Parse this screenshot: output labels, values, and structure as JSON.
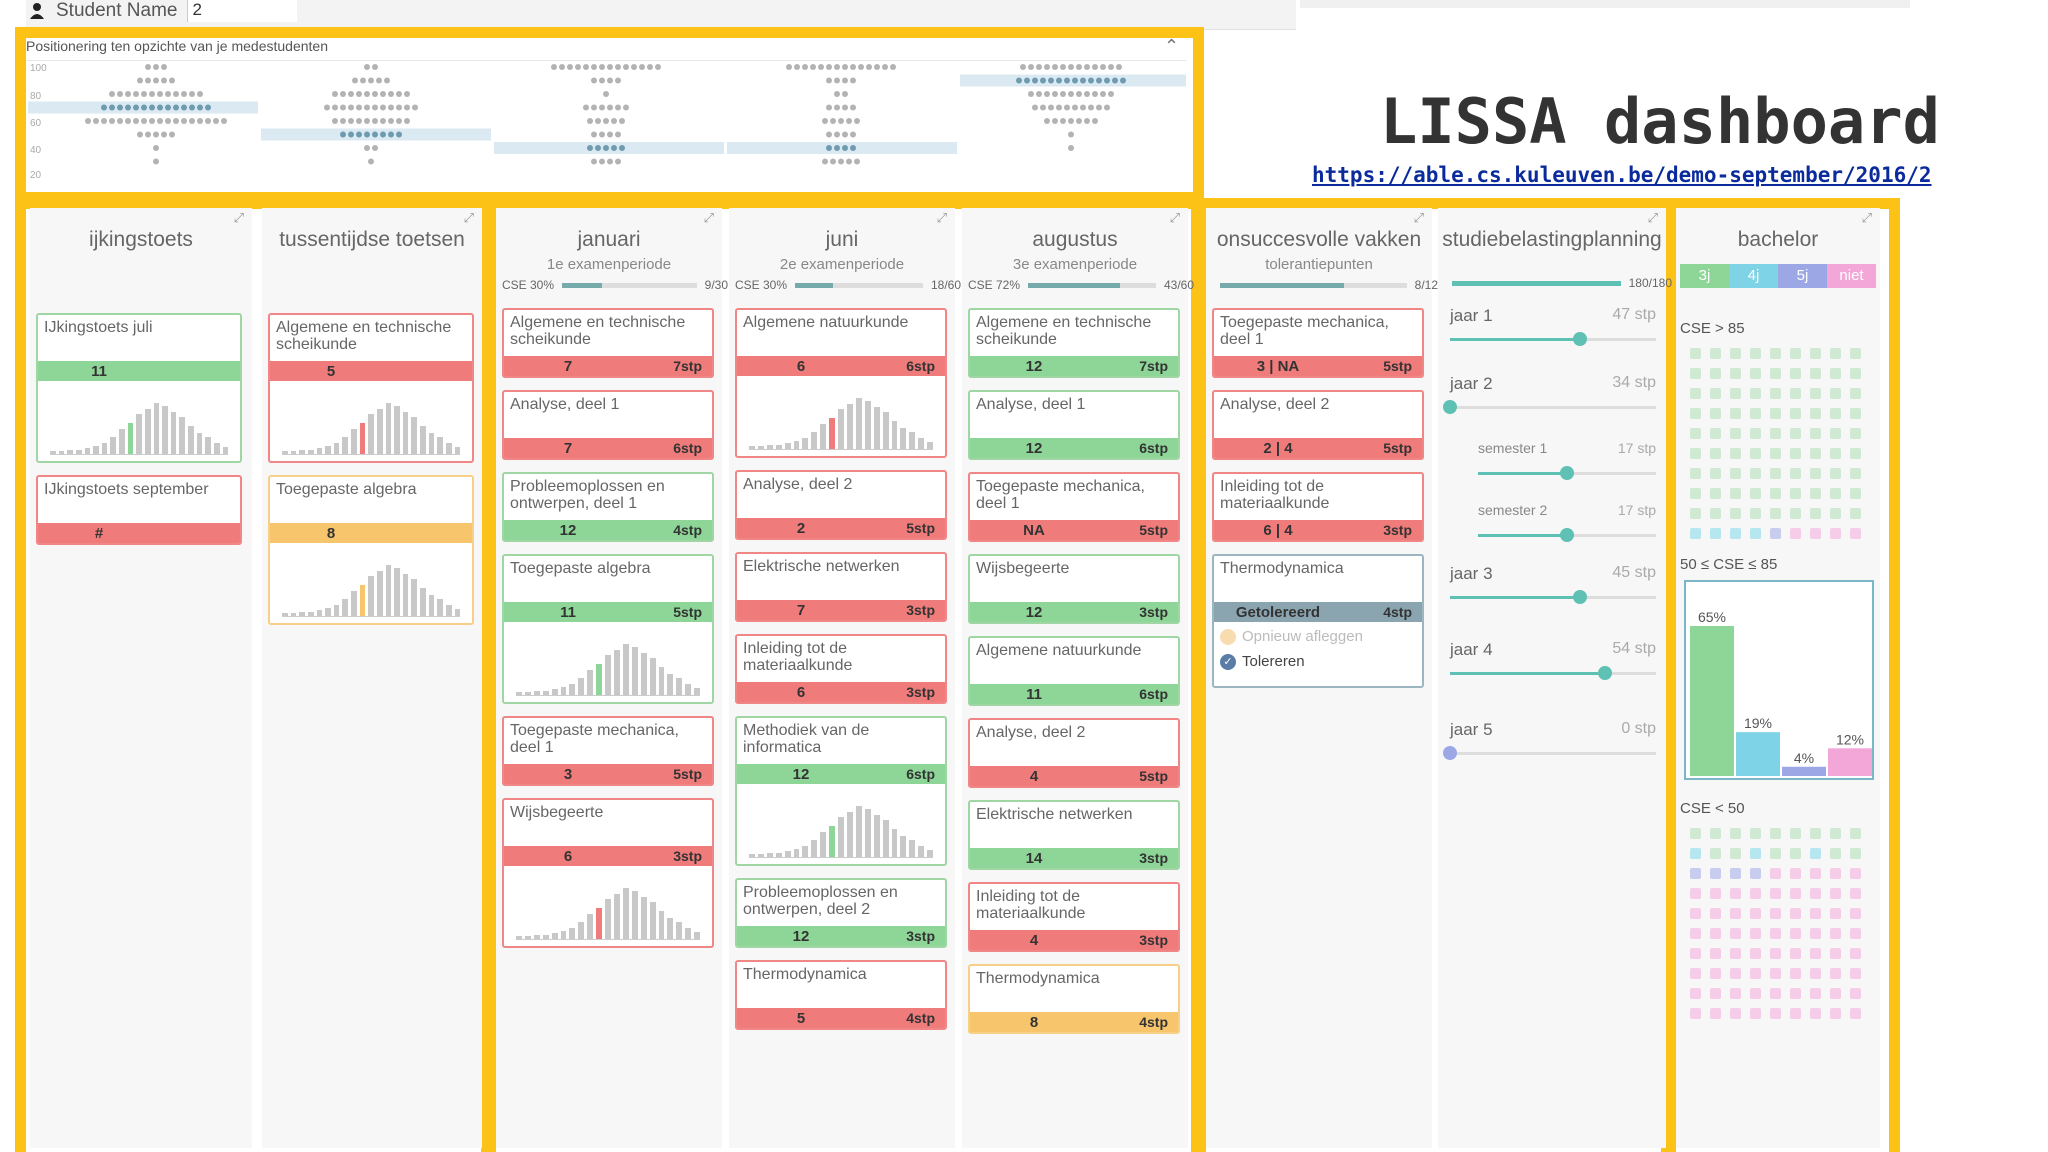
{
  "student": {
    "label": "Student Name",
    "value": "2"
  },
  "positioning": {
    "title": "Positionering ten opzichte van je medestudenten",
    "yticks": [
      "100",
      "80",
      "60",
      "40",
      "20"
    ]
  },
  "slide": {
    "title": "LISSA dashboard",
    "link": "https://able.cs.kuleuven.be/demo-september/2016/2"
  },
  "columns": {
    "ijkingstoets": {
      "title": "ijkingstoets",
      "cards": [
        {
          "name": "IJkingstoets juli",
          "grade": "11",
          "stp": "",
          "color": "green",
          "hist": true
        },
        {
          "name": "IJkingstoets september",
          "grade": "#",
          "stp": "",
          "color": "red",
          "hist": false
        }
      ]
    },
    "tussentijdse": {
      "title": "tussentijdse toetsen",
      "cards": [
        {
          "name": "Algemene en technische scheikunde",
          "grade": "5",
          "stp": "",
          "color": "red",
          "hist": true
        },
        {
          "name": "Toegepaste algebra",
          "grade": "8",
          "stp": "",
          "color": "orange",
          "hist": true
        }
      ]
    },
    "januari": {
      "title": "januari",
      "sub": "1e examenperiode",
      "cse": "CSE 30%",
      "ratio": "9/30",
      "fill": 0.3,
      "cards": [
        {
          "name": "Algemene en technische scheikunde",
          "grade": "7",
          "stp": "7stp",
          "color": "red"
        },
        {
          "name": "Analyse, deel 1",
          "grade": "7",
          "stp": "6stp",
          "color": "red"
        },
        {
          "name": "Probleemoplossen en ontwerpen, deel 1",
          "grade": "12",
          "stp": "4stp",
          "color": "green"
        },
        {
          "name": "Toegepaste algebra",
          "grade": "11",
          "stp": "5stp",
          "color": "green"
        },
        {
          "name": "Toegepaste mechanica, deel 1",
          "grade": "3",
          "stp": "5stp",
          "color": "red"
        },
        {
          "name": "Wijsbegeerte",
          "grade": "6",
          "stp": "3stp",
          "color": "red"
        }
      ]
    },
    "juni": {
      "title": "juni",
      "sub": "2e examenperiode",
      "cse": "CSE 30%",
      "ratio": "18/60",
      "fill": 0.3,
      "cards": [
        {
          "name": "Algemene natuurkunde",
          "grade": "6",
          "stp": "6stp",
          "color": "red"
        },
        {
          "name": "Analyse, deel 2",
          "grade": "2",
          "stp": "5stp",
          "color": "red"
        },
        {
          "name": "Elektrische netwerken",
          "grade": "7",
          "stp": "3stp",
          "color": "red"
        },
        {
          "name": "Inleiding tot de materiaalkunde",
          "grade": "6",
          "stp": "3stp",
          "color": "red"
        },
        {
          "name": "Methodiek van de informatica",
          "grade": "12",
          "stp": "6stp",
          "color": "green"
        },
        {
          "name": "Probleemoplossen en ontwerpen, deel 2",
          "grade": "12",
          "stp": "3stp",
          "color": "green"
        },
        {
          "name": "Thermodynamica",
          "grade": "5",
          "stp": "4stp",
          "color": "red"
        }
      ]
    },
    "augustus": {
      "title": "augustus",
      "sub": "3e examenperiode",
      "cse": "CSE 72%",
      "ratio": "43/60",
      "fill": 0.72,
      "cards": [
        {
          "name": "Algemene en technische scheikunde",
          "grade": "12",
          "stp": "7stp",
          "color": "green"
        },
        {
          "name": "Analyse, deel 1",
          "grade": "12",
          "stp": "6stp",
          "color": "green"
        },
        {
          "name": "Toegepaste mechanica, deel 1",
          "grade": "NA",
          "stp": "5stp",
          "color": "red"
        },
        {
          "name": "Wijsbegeerte",
          "grade": "12",
          "stp": "3stp",
          "color": "green"
        },
        {
          "name": "Algemene natuurkunde",
          "grade": "11",
          "stp": "6stp",
          "color": "green"
        },
        {
          "name": "Analyse, deel 2",
          "grade": "4",
          "stp": "5stp",
          "color": "red"
        },
        {
          "name": "Elektrische netwerken",
          "grade": "14",
          "stp": "3stp",
          "color": "green"
        },
        {
          "name": "Inleiding tot de materiaalkunde",
          "grade": "4",
          "stp": "3stp",
          "color": "red"
        },
        {
          "name": "Thermodynamica",
          "grade": "8",
          "stp": "4stp",
          "color": "orange"
        }
      ]
    },
    "onsuccesvolle": {
      "title": "onsuccesvolle vakken",
      "sub": "tolerantiepunten",
      "ratio": "8/12",
      "fill": 0.667,
      "cards": [
        {
          "name": "Toegepaste mechanica, deel 1",
          "grade": "3 | NA",
          "stp": "5stp",
          "color": "red"
        },
        {
          "name": "Analyse, deel 2",
          "grade": "2 | 4",
          "stp": "5stp",
          "color": "red"
        },
        {
          "name": "Inleiding tot de materiaalkunde",
          "grade": "6 | 4",
          "stp": "3stp",
          "color": "red"
        }
      ],
      "thermo": {
        "name": "Thermodynamica",
        "status": "Getolereerd",
        "stp": "4stp",
        "opt1": "Opnieuw afleggen",
        "opt2": "Tolereren"
      }
    },
    "studiebelasting": {
      "title": "studiebelastingplanning",
      "ratio": "180/180",
      "years": [
        {
          "label": "jaar 1",
          "value": "47 stp",
          "fill": 0.63
        },
        {
          "label": "jaar 2",
          "value": "34 stp",
          "fill": 0.0
        },
        {
          "label": "semester 1",
          "value": "17 stp",
          "fill": 0.5
        },
        {
          "label": "semester 2",
          "value": "17 stp",
          "fill": 0.5
        },
        {
          "label": "jaar 3",
          "value": "45 stp",
          "fill": 0.63
        },
        {
          "label": "jaar 4",
          "value": "54 stp",
          "fill": 0.75
        },
        {
          "label": "jaar 5",
          "value": "0 stp",
          "fill": 0.0
        }
      ]
    },
    "bachelor": {
      "title": "bachelor",
      "legend": [
        {
          "label": "3j",
          "color": "#8dd697"
        },
        {
          "label": "4j",
          "color": "#7fd3e6"
        },
        {
          "label": "5j",
          "color": "#9ca8e6"
        },
        {
          "label": "niet",
          "color": "#f3a6d8"
        }
      ],
      "cse_high": "CSE > 85",
      "cse_mid": "50 ≤ CSE ≤ 85",
      "cse_low": "CSE < 50",
      "bars": [
        {
          "label": "65%",
          "value": 65,
          "color": "#8dd697"
        },
        {
          "label": "19%",
          "value": 19,
          "color": "#7fd3e6"
        },
        {
          "label": "4%",
          "value": 4,
          "color": "#9ca8e6"
        },
        {
          "label": "12%",
          "value": 12,
          "color": "#f3a6d8"
        }
      ]
    }
  }
}
